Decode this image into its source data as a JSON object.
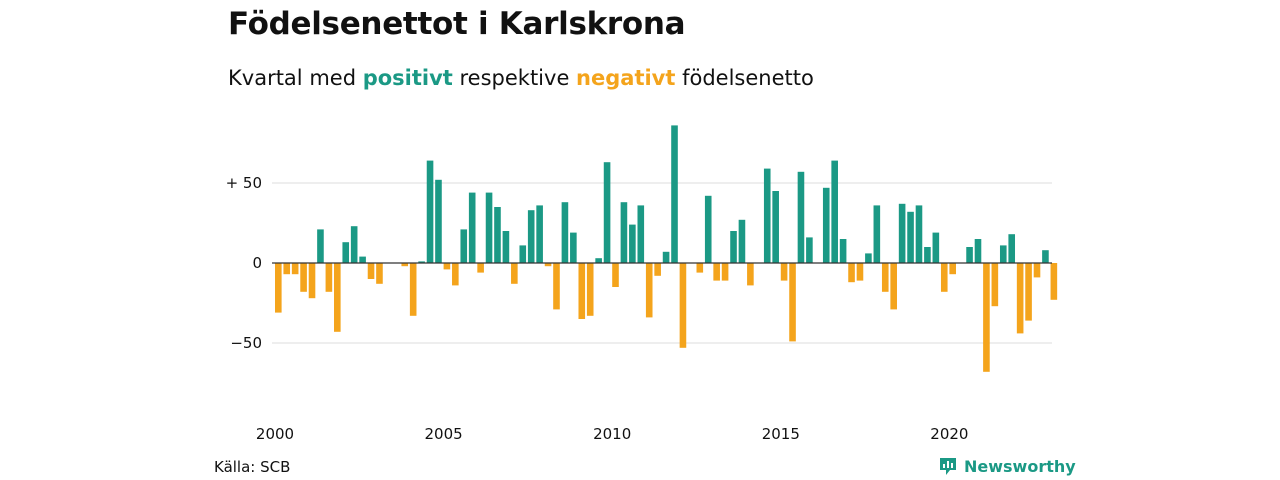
{
  "title": "Födelsenettot i Karlskrona",
  "subtitle": {
    "part1": "Kvartal med ",
    "positive_word": "positivt",
    "part2": " respektive ",
    "negative_word": "negativt",
    "part3": " födelsenetto"
  },
  "colors": {
    "positive": "#1b9985",
    "negative": "#f4a41c",
    "brand": "#1b9985",
    "grid": "#dddddd",
    "axis": "#333333"
  },
  "source": "Källa: SCB",
  "brand": {
    "name": "Newsworthy",
    "icon": "newsworthy-logo-icon"
  },
  "chart_data": {
    "type": "bar",
    "title": "Födelsenettot i Karlskrona",
    "xlabel": "",
    "ylabel": "",
    "ylim": [
      -75,
      100
    ],
    "yticks": [
      50,
      0,
      -50
    ],
    "ytick_labels": [
      "+ 50",
      "0",
      "−50"
    ],
    "xticks": [
      2000,
      2005,
      2010,
      2015,
      2020
    ],
    "x_start_year": 2000,
    "grid": true,
    "legend": "none",
    "series": [
      {
        "values": [
          -31,
          -7,
          -7,
          -18,
          -22,
          21,
          -18,
          -43,
          13,
          23,
          4,
          -10,
          -13,
          0,
          0,
          -2,
          -33,
          1,
          64,
          52,
          -4,
          -14,
          21,
          44,
          -6,
          44,
          35,
          20,
          -13,
          11,
          33,
          36,
          -2,
          -29,
          38,
          19,
          -35,
          -33,
          3,
          63,
          -15,
          38,
          24,
          36,
          -34,
          -8,
          7,
          86,
          -53,
          0,
          -6,
          42,
          -11,
          -11,
          20,
          27,
          -14,
          0,
          59,
          45,
          -11,
          -49,
          57,
          16,
          0,
          47,
          64,
          15,
          -12,
          -11,
          6,
          36,
          -18,
          -29,
          37,
          32,
          36,
          10,
          19,
          -18,
          -7,
          0,
          10,
          15,
          -68,
          -27,
          11,
          18,
          -44,
          -36,
          -9,
          8,
          -23
        ]
      }
    ]
  }
}
